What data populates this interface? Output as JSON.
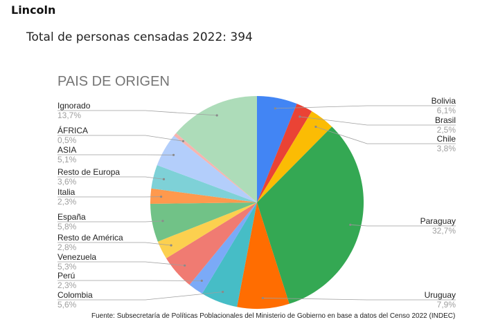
{
  "page": {
    "title": "Lincoln",
    "subtitle": "Total de personas censadas 2022: 394",
    "source": "Fuente: Subsecretaría de Políticas Poblacionales del Ministerio de Gobierno en base a datos del Censo 2022 (INDEC)"
  },
  "chart_data": {
    "type": "pie",
    "title": "PAIS DE ORIGEN",
    "value_unit": "%",
    "slices": [
      {
        "label": "Bolivia",
        "value": 6.1,
        "display": "6,1%",
        "color": "#4285f4"
      },
      {
        "label": "Brasil",
        "value": 2.5,
        "display": "2,5%",
        "color": "#ea4335"
      },
      {
        "label": "Chile",
        "value": 3.8,
        "display": "3,8%",
        "color": "#fbbc04"
      },
      {
        "label": "Paraguay",
        "value": 32.7,
        "display": "32,7%",
        "color": "#34a853"
      },
      {
        "label": "Uruguay",
        "value": 7.9,
        "display": "7,9%",
        "color": "#ff6d01"
      },
      {
        "label": "Colombia",
        "value": 5.6,
        "display": "5,6%",
        "color": "#46bdc6"
      },
      {
        "label": "Perú",
        "value": 2.3,
        "display": "2,3%",
        "color": "#7baaf7"
      },
      {
        "label": "Venezuela",
        "value": 5.3,
        "display": "5,3%",
        "color": "#f07b72"
      },
      {
        "label": "Resto de América",
        "value": 2.8,
        "display": "2,8%",
        "color": "#fcd04f"
      },
      {
        "label": "España",
        "value": 5.8,
        "display": "5,8%",
        "color": "#71c287"
      },
      {
        "label": "Italia",
        "value": 2.3,
        "display": "2,3%",
        "color": "#ff994d"
      },
      {
        "label": "Resto de Europa",
        "value": 3.6,
        "display": "3,6%",
        "color": "#7ed1d7"
      },
      {
        "label": "ASIA",
        "value": 5.1,
        "display": "5,1%",
        "color": "#b3cefb"
      },
      {
        "label": "ÁFRICA",
        "value": 0.5,
        "display": "0,5%",
        "color": "#f7b4ae"
      },
      {
        "label": "Ignorado",
        "value": 13.7,
        "display": "13,7%",
        "color": "#addcb9"
      }
    ]
  }
}
